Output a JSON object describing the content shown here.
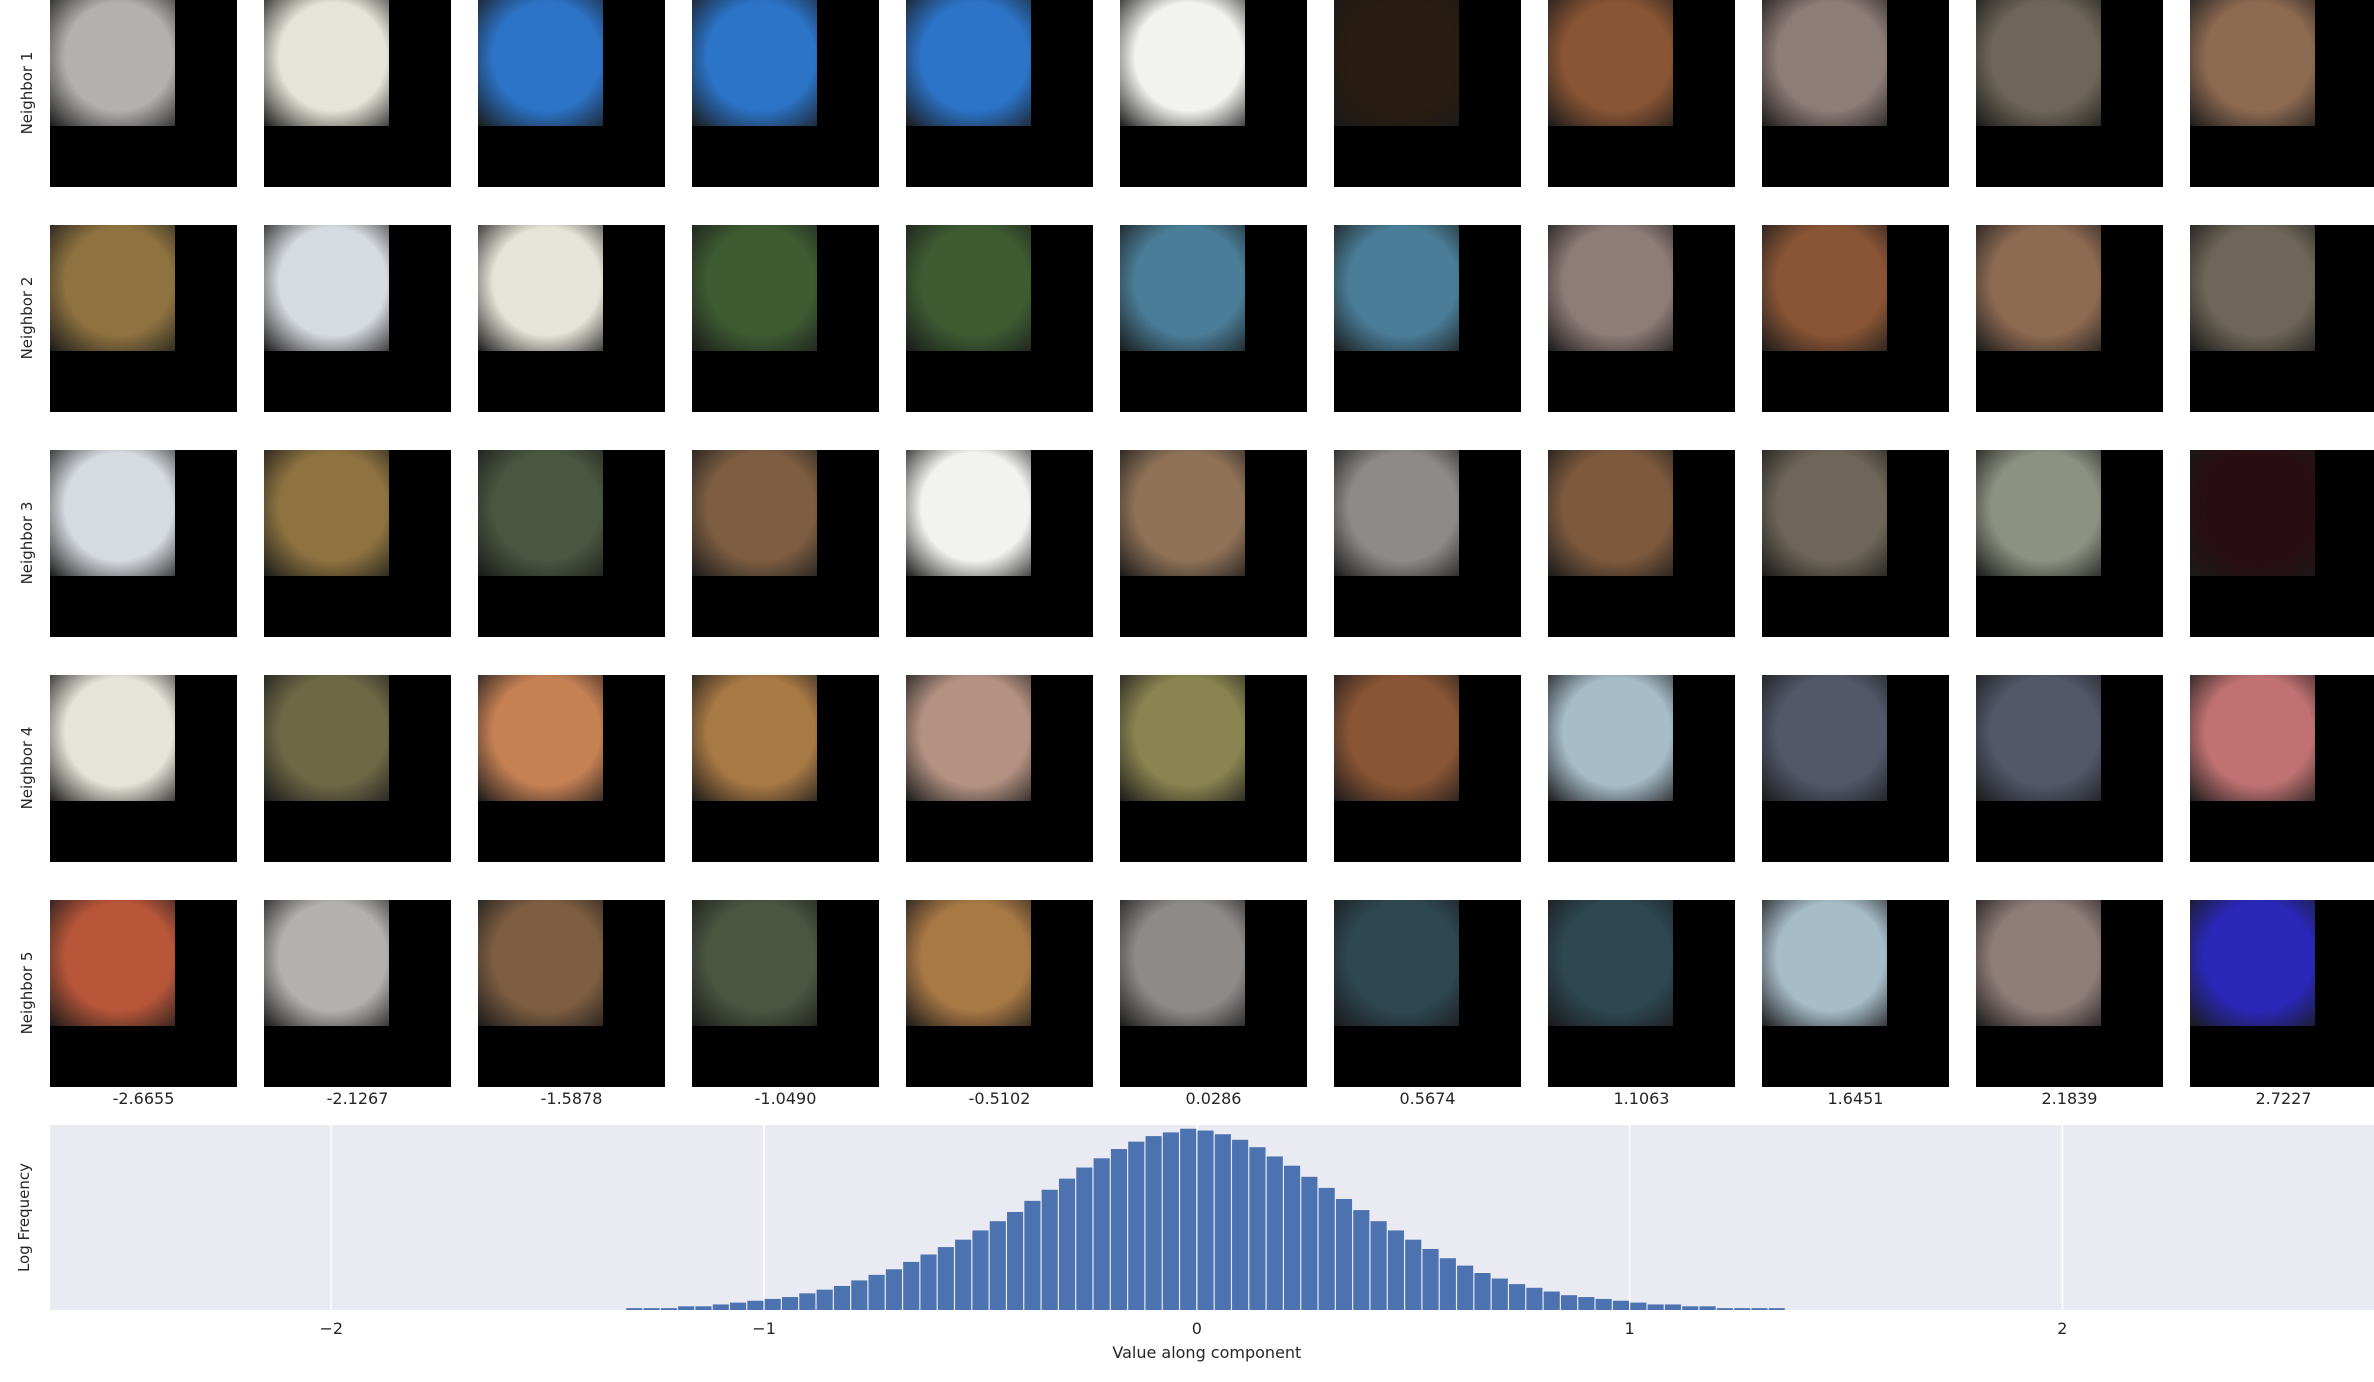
{
  "row_labels": [
    "Neighbor 1",
    "Neighbor 2",
    "Neighbor 3",
    "Neighbor 4",
    "Neighbor 5"
  ],
  "column_values": [
    "-2.6655",
    "-2.1267",
    "-1.5878",
    "-1.0490",
    "-0.5102",
    "0.0286",
    "0.5674",
    "1.1063",
    "1.6451",
    "2.1839",
    "2.7227"
  ],
  "patch_colors": [
    [
      "#b4b0ae",
      "#e6e3d8",
      "#2c74c8",
      "#2c74c8",
      "#2c74c8",
      "#f2f2ee",
      "#2a1c10",
      "#8a5535",
      "#8e7c78",
      "#6e6658",
      "#8d6a52"
    ],
    [
      "#8e7340",
      "#d6dbe0",
      "#e6e3d8",
      "#3d5c32",
      "#3d5c32",
      "#4a7e98",
      "#4a7e98",
      "#8e7c78",
      "#8a5535",
      "#8d6a52",
      "#6e6658"
    ],
    [
      "#d6dbe0",
      "#8e7340",
      "#4a5640",
      "#7d5e42",
      "#f2f2ee",
      "#8f7258",
      "#8e8a88",
      "#7d5a3e",
      "#6e6658",
      "#8c9282",
      "#2a0d12"
    ],
    [
      "#e6e3d8",
      "#6e6846",
      "#c58054",
      "#a87845",
      "#b49282",
      "#8a8450",
      "#8a5535",
      "#a6bcc8",
      "#52586a",
      "#52586a",
      "#c07272"
    ],
    [
      "#b8563a",
      "#b4b0ae",
      "#7d5e42",
      "#4a5640",
      "#a87845",
      "#8e8a88",
      "#2e4852",
      "#2e4852",
      "#a6bcc8",
      "#8e7c78",
      "#2a28b8"
    ]
  ],
  "chart_data": {
    "type": "bar",
    "title": "",
    "xlabel": "Value along component",
    "ylabel": "Log Frequency",
    "xlim": [
      -2.65,
      2.72
    ],
    "ylim": [
      0,
      1.0
    ],
    "x_ticks": [
      -2,
      -1,
      0,
      1,
      2
    ],
    "x_tick_labels": [
      "−2",
      "−1",
      "0",
      "1",
      "2"
    ],
    "grid": "vertical lines",
    "colors": {
      "bar": "#4c72b0",
      "background": "#eaeaf2",
      "grid": "#ffffff"
    },
    "bins": {
      "x": [
        -1.3,
        -1.26,
        -1.22,
        -1.18,
        -1.14,
        -1.1,
        -1.06,
        -1.02,
        -0.98,
        -0.94,
        -0.9,
        -0.86,
        -0.82,
        -0.78,
        -0.74,
        -0.7,
        -0.66,
        -0.62,
        -0.58,
        -0.54,
        -0.5,
        -0.46,
        -0.42,
        -0.38,
        -0.34,
        -0.3,
        -0.26,
        -0.22,
        -0.18,
        -0.14,
        -0.1,
        -0.06,
        -0.02,
        0.02,
        0.06,
        0.1,
        0.14,
        0.18,
        0.22,
        0.26,
        0.3,
        0.34,
        0.38,
        0.42,
        0.46,
        0.5,
        0.54,
        0.58,
        0.62,
        0.66,
        0.7,
        0.74,
        0.78,
        0.82,
        0.86,
        0.9,
        0.94,
        0.98,
        1.02,
        1.06,
        1.1,
        1.14,
        1.18,
        1.22,
        1.26,
        1.3,
        1.34
      ],
      "values": [
        0.01,
        0.01,
        0.01,
        0.02,
        0.02,
        0.03,
        0.04,
        0.05,
        0.06,
        0.07,
        0.09,
        0.11,
        0.13,
        0.16,
        0.19,
        0.22,
        0.26,
        0.3,
        0.34,
        0.38,
        0.43,
        0.48,
        0.53,
        0.59,
        0.65,
        0.71,
        0.77,
        0.82,
        0.87,
        0.91,
        0.94,
        0.96,
        0.98,
        0.97,
        0.95,
        0.92,
        0.88,
        0.83,
        0.78,
        0.72,
        0.66,
        0.6,
        0.54,
        0.48,
        0.43,
        0.38,
        0.33,
        0.28,
        0.24,
        0.2,
        0.17,
        0.14,
        0.12,
        0.1,
        0.08,
        0.07,
        0.06,
        0.05,
        0.04,
        0.03,
        0.03,
        0.02,
        0.02,
        0.01,
        0.01,
        0.01,
        0.01
      ]
    }
  }
}
